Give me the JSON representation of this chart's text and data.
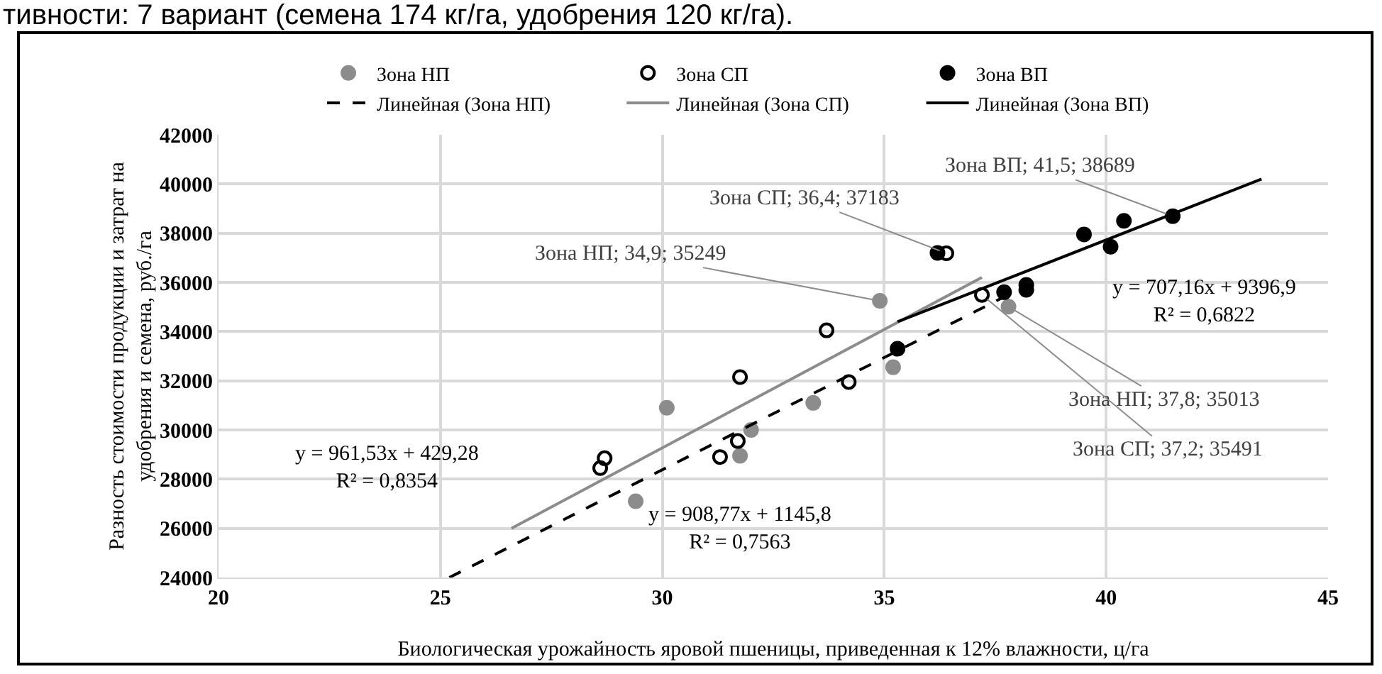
{
  "chart_data": {
    "type": "scatter",
    "title": "тивности: 7 вариант (семена 174 кг/га, удобрения 120 кг/га).",
    "xlabel": "Биологическая урожайность яровой пшеницы, приведенная к 12% влажности, ц/га",
    "ylabel": "Разность стоимости продукции и затрат на\nудобрения и семена, руб./га",
    "xlim": [
      20,
      45
    ],
    "xticks": [
      20,
      25,
      30,
      35,
      40,
      45
    ],
    "ylim": [
      24000,
      42000
    ],
    "yticks": [
      24000,
      26000,
      28000,
      30000,
      32000,
      34000,
      36000,
      38000,
      40000,
      42000
    ],
    "grid": true,
    "legend": "top",
    "marker": "circle",
    "series": [
      {
        "name": "Зона НП",
        "type": "scatter",
        "color": "#8c8c8c",
        "x": [
          29.4,
          30.1,
          31.75,
          32.0,
          33.4,
          34.9,
          35.2,
          37.8
        ],
        "values": [
          27100,
          30900,
          28950,
          30000,
          31100,
          35249,
          32550,
          35013
        ]
      },
      {
        "name": "Зона СП",
        "type": "scatter",
        "color": "#000000",
        "marker": "circle-open",
        "x": [
          28.6,
          28.7,
          31.3,
          31.7,
          31.75,
          33.7,
          34.2,
          36.4,
          37.2
        ],
        "values": [
          28450,
          28850,
          28900,
          29550,
          32150,
          34050,
          31950,
          37183,
          35491
        ]
      },
      {
        "name": "Зона ВП",
        "type": "scatter",
        "color": "#000000",
        "x": [
          35.3,
          36.2,
          37.7,
          38.2,
          38.2,
          39.5,
          40.1,
          40.4,
          41.5
        ],
        "values": [
          33300,
          37200,
          35600,
          35700,
          35900,
          37950,
          37450,
          38500,
          38689
        ]
      },
      {
        "name": "Линейная (Зона НП)",
        "type": "line",
        "color": "#000000",
        "line_style": "dashed",
        "marker": "none",
        "x": [
          25.2,
          37.8
        ],
        "values": [
          24000,
          35500
        ]
      },
      {
        "name": "Линейная (Зона СП)",
        "type": "line",
        "color": "#8c8c8c",
        "line_style": "solid",
        "marker": "none",
        "x": [
          26.6,
          37.2
        ],
        "values": [
          26000,
          36200
        ]
      },
      {
        "name": "Линейная (Зона ВП)",
        "type": "line",
        "color": "#000000",
        "line_style": "solid",
        "marker": "none",
        "x": [
          35.3,
          43.5
        ],
        "values": [
          34400,
          40200
        ]
      }
    ],
    "annotations": [
      {
        "text": "Зона СП; 36,4; 37183",
        "x": 36.4,
        "y": 37183
      },
      {
        "text": "Зона НП; 34,9; 35249",
        "x": 34.9,
        "y": 35249
      },
      {
        "text": "Зона ВП; 41,5; 38689",
        "x": 41.5,
        "y": 38689
      },
      {
        "text": "Зона НП; 37,8; 35013",
        "x": 37.8,
        "y": 35013
      },
      {
        "text": "Зона СП; 37,2; 35491",
        "x": 37.2,
        "y": 35491
      },
      "y = 961,53x + 429,28\nR² = 0,8354",
      "y = 908,77x + 1145,8\nR² = 0,7563",
      "y = 707,16x + 9396,9\nR² = 0,6822"
    ]
  }
}
